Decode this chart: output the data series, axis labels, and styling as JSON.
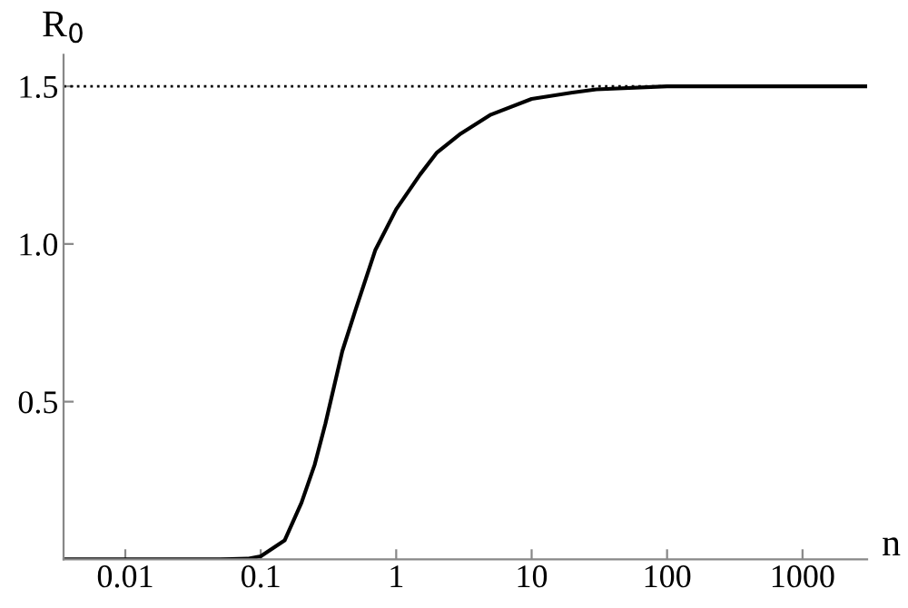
{
  "chart_data": {
    "type": "line",
    "xlabel": "n",
    "ylabel": "R$_{0}$",
    "log": "x",
    "x": [
      0.0035,
      0.01,
      0.05,
      0.08,
      0.1,
      0.15,
      0.2,
      0.25,
      0.3,
      0.4,
      0.5,
      0.7,
      1,
      1.5,
      2,
      3,
      5,
      10,
      20,
      30,
      100,
      1000,
      3000
    ],
    "series": [
      {
        "color": "#000000",
        "values": [
          0,
          0,
          0,
          0.002,
          0.01,
          0.06,
          0.18,
          0.3,
          0.43,
          0.66,
          0.79,
          0.98,
          1.11,
          1.22,
          1.29,
          1.35,
          1.41,
          1.46,
          1.48,
          1.49,
          1.5,
          1.5,
          1.5
        ]
      }
    ],
    "xlim": [
      0.0035,
      3000
    ],
    "ylim": [
      0,
      1.6
    ],
    "xticks": [
      0.01,
      0.1,
      1,
      10,
      100,
      1000
    ],
    "yticks": [
      0.5,
      {
        "value": 1,
        "label": "1.0"
      },
      1.5
    ],
    "ref_lines": [
      {
        "axis": "y",
        "value": 1.5,
        "color": "#000000",
        "line_style": "dotted"
      }
    ],
    "grid": false,
    "legend": false,
    "marker": "none",
    "line_style": "solid"
  }
}
